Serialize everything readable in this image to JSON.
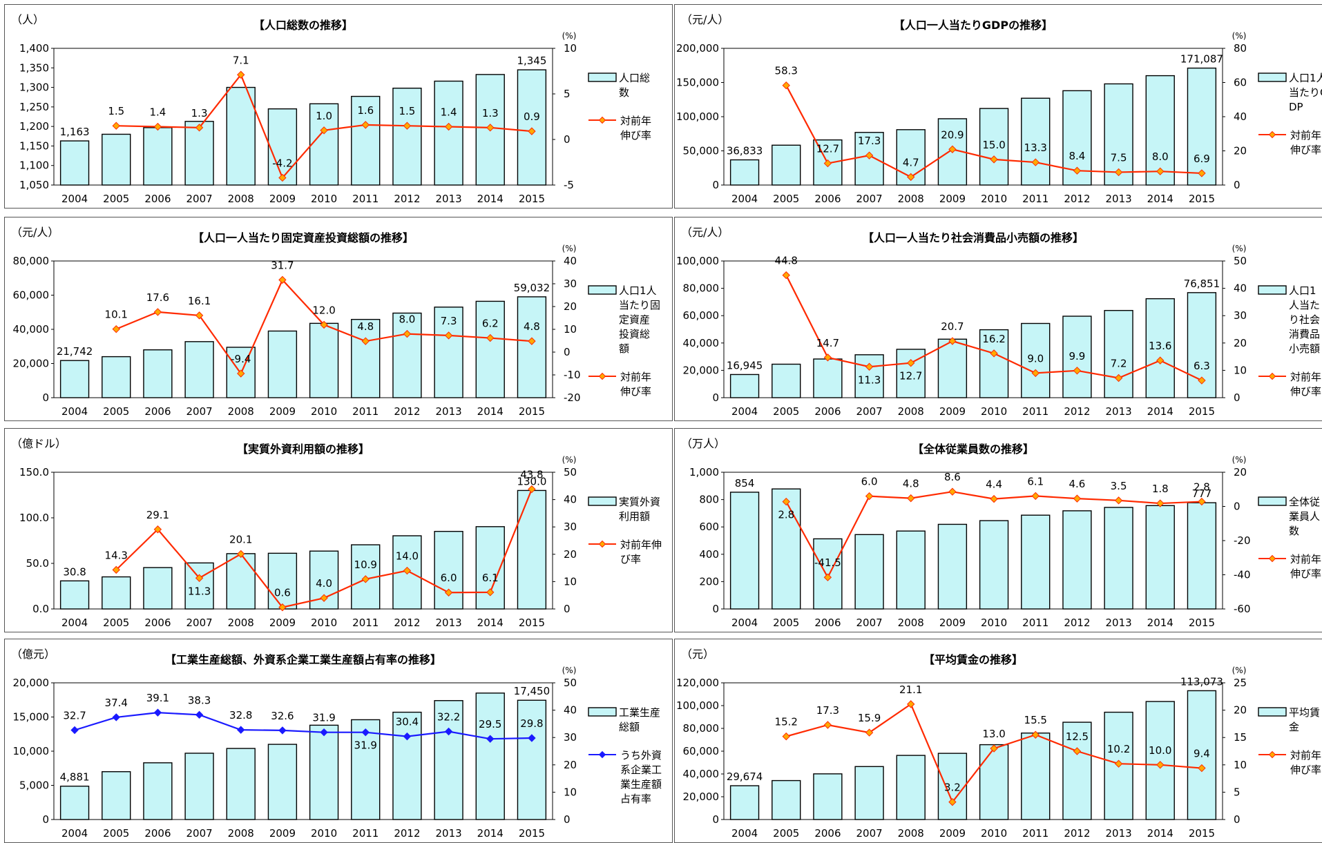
{
  "chart_data": [
    {
      "type": "bar",
      "title": "【人口総数の推移】",
      "y_unit": "（人）",
      "y2_unit": "(%)",
      "categories": [
        "2004",
        "2005",
        "2006",
        "2007",
        "2008",
        "2009",
        "2010",
        "2011",
        "2012",
        "2013",
        "2014",
        "2015"
      ],
      "ylim": [
        1050,
        1400
      ],
      "yticks": [
        "1,050",
        "1,100",
        "1,150",
        "1,200",
        "1,250",
        "1,300",
        "1,350",
        "1,400"
      ],
      "y2lim": [
        -5,
        10
      ],
      "y2ticks": [
        "-5",
        "0",
        "5",
        "10"
      ],
      "series": [
        {
          "name": "人口総数",
          "kind": "bar",
          "values": [
            1163,
            1180,
            1197,
            1213,
            1300,
            1245,
            1258,
            1277,
            1298,
            1316,
            1333,
            1345
          ],
          "labels": [
            "1,163",
            "",
            "",
            "",
            "",
            "",
            "",
            "",
            "",
            "",
            "",
            "1,345"
          ]
        },
        {
          "name": "対前年伸び率",
          "kind": "line",
          "axis": "right",
          "color": "#ff2a00",
          "marker": "#ffaa00",
          "values": [
            null,
            1.5,
            1.4,
            1.3,
            7.1,
            -4.2,
            1.0,
            1.6,
            1.5,
            1.4,
            1.3,
            0.9
          ],
          "labels": [
            "",
            "1.5",
            "1.4",
            "1.3",
            "7.1",
            "-4.2",
            "1.0",
            "1.6",
            "1.5",
            "1.4",
            "1.3",
            "0.9"
          ]
        }
      ],
      "legend_lines": [
        [
          "人口総",
          "数"
        ],
        [
          "対前年",
          "伸び率"
        ]
      ]
    },
    {
      "type": "bar",
      "title": "【人口一人当たりGDPの推移】",
      "y_unit": "（元/人）",
      "y2_unit": "(%)",
      "categories": [
        "2004",
        "2005",
        "2006",
        "2007",
        "2008",
        "2009",
        "2010",
        "2011",
        "2012",
        "2013",
        "2014",
        "2015"
      ],
      "ylim": [
        0,
        200000
      ],
      "yticks": [
        "0",
        "50,000",
        "100,000",
        "150,000",
        "200,000"
      ],
      "y2lim": [
        0,
        80
      ],
      "y2ticks": [
        "0",
        "20",
        "40",
        "60",
        "80"
      ],
      "series": [
        {
          "name": "人口1人当たりGDP",
          "kind": "bar",
          "values": [
            36833,
            58300,
            66000,
            77000,
            81000,
            97000,
            112000,
            127000,
            138000,
            148000,
            160000,
            171087
          ],
          "labels": [
            "36,833",
            "",
            "",
            "",
            "",
            "",
            "",
            "",
            "",
            "",
            "",
            "171,087"
          ]
        },
        {
          "name": "対前年伸び率",
          "kind": "line",
          "axis": "right",
          "color": "#ff2a00",
          "marker": "#ffaa00",
          "values": [
            null,
            58.3,
            12.7,
            17.3,
            4.7,
            20.9,
            15.0,
            13.3,
            8.4,
            7.5,
            8.0,
            6.9
          ],
          "labels": [
            "",
            "58.3",
            "12.7",
            "17.3",
            "4.7",
            "20.9",
            "15.0",
            "13.3",
            "8.4",
            "7.5",
            "8.0",
            "6.9"
          ]
        }
      ],
      "legend_lines": [
        [
          "人口1人",
          "当たりG",
          "DP"
        ],
        [
          "対前年",
          "伸び率"
        ]
      ]
    },
    {
      "type": "bar",
      "title": "【人口一人当たり固定資産投資総額の推移】",
      "y_unit": "（元/人）",
      "y2_unit": "(%)",
      "categories": [
        "2004",
        "2005",
        "2006",
        "2007",
        "2008",
        "2009",
        "2010",
        "2011",
        "2012",
        "2013",
        "2014",
        "2015"
      ],
      "ylim": [
        0,
        80000
      ],
      "yticks": [
        "0",
        "20,000",
        "40,000",
        "60,000",
        "80,000"
      ],
      "y2lim": [
        -20,
        40
      ],
      "y2ticks": [
        "-20",
        "-10",
        "0",
        "10",
        "20",
        "30",
        "40"
      ],
      "series": [
        {
          "name": "人口1人当たり固定資産投資総額",
          "kind": "bar",
          "values": [
            21742,
            24000,
            28000,
            32800,
            29500,
            39000,
            43500,
            45800,
            49500,
            53000,
            56400,
            59032
          ],
          "labels": [
            "21,742",
            "",
            "",
            "",
            "",
            "",
            "",
            "",
            "",
            "",
            "",
            "59,032"
          ]
        },
        {
          "name": "対前年伸び率",
          "kind": "line",
          "axis": "right",
          "color": "#ff2a00",
          "marker": "#ffaa00",
          "values": [
            null,
            10.1,
            17.6,
            16.1,
            -9.4,
            31.7,
            12.0,
            4.8,
            8.0,
            7.3,
            6.2,
            4.8
          ],
          "labels": [
            "",
            "10.1",
            "17.6",
            "16.1",
            "-9.4",
            "31.7",
            "12.0",
            "4.8",
            "8.0",
            "7.3",
            "6.2",
            "4.8"
          ]
        }
      ],
      "legend_lines": [
        [
          "人口1人",
          "当たり固",
          "定資産",
          "投資総",
          "額"
        ],
        [
          "対前年",
          "伸び率"
        ]
      ]
    },
    {
      "type": "bar",
      "title": "【人口一人当たり社会消費品小売額の推移】",
      "y_unit": "（元/人）",
      "y2_unit": "(%)",
      "categories": [
        "2004",
        "2005",
        "2006",
        "2007",
        "2008",
        "2009",
        "2010",
        "2011",
        "2012",
        "2013",
        "2014",
        "2015"
      ],
      "ylim": [
        0,
        100000
      ],
      "yticks": [
        "0",
        "20,000",
        "40,000",
        "60,000",
        "80,000",
        "100,000"
      ],
      "y2lim": [
        0,
        50
      ],
      "y2ticks": [
        "0",
        "10",
        "20",
        "30",
        "40",
        "50"
      ],
      "series": [
        {
          "name": "人口1人当たり社会消費品小売額",
          "kind": "bar",
          "values": [
            16945,
            24500,
            28300,
            31400,
            35400,
            42800,
            49700,
            54300,
            59600,
            63800,
            72400,
            76851
          ],
          "labels": [
            "16,945",
            "",
            "",
            "",
            "",
            "",
            "",
            "",
            "",
            "",
            "",
            "76,851"
          ]
        },
        {
          "name": "対前年伸び率",
          "kind": "line",
          "axis": "right",
          "color": "#ff2a00",
          "marker": "#ffaa00",
          "values": [
            null,
            44.8,
            14.7,
            11.3,
            12.7,
            20.7,
            16.2,
            9.0,
            9.9,
            7.2,
            13.6,
            6.3
          ],
          "labels": [
            "",
            "44.8",
            "14.7",
            "11.3",
            "12.7",
            "20.7",
            "16.2",
            "9.0",
            "9.9",
            "7.2",
            "13.6",
            "6.3"
          ]
        }
      ],
      "legend_lines": [
        [
          "人口1",
          "人当た",
          "り社会",
          "消費品",
          "小売額"
        ],
        [
          "対前年",
          "伸び率"
        ]
      ]
    },
    {
      "type": "bar",
      "title": "【実質外資利用額の推移】",
      "y_unit": "（億ドル）",
      "y2_unit": "(%)",
      "categories": [
        "2004",
        "2005",
        "2006",
        "2007",
        "2008",
        "2009",
        "2010",
        "2011",
        "2012",
        "2013",
        "2014",
        "2015"
      ],
      "ylim": [
        0,
        150
      ],
      "yticks": [
        "0.0",
        "50.0",
        "100.0",
        "150.0"
      ],
      "y2lim": [
        0,
        50
      ],
      "y2ticks": [
        "0",
        "10",
        "20",
        "30",
        "40",
        "50"
      ],
      "series": [
        {
          "name": "実質外資利用額",
          "kind": "bar",
          "values": [
            30.8,
            35.2,
            45.4,
            50.5,
            60.7,
            61.1,
            63.5,
            70.4,
            80.3,
            85.1,
            90.3,
            130.0
          ],
          "labels": [
            "30.8",
            "",
            "",
            "",
            "",
            "",
            "",
            "",
            "",
            "",
            "",
            "130.0"
          ]
        },
        {
          "name": "対前年伸び率",
          "kind": "line",
          "axis": "right",
          "color": "#ff2a00",
          "marker": "#ffaa00",
          "values": [
            null,
            14.3,
            29.1,
            11.3,
            20.1,
            0.6,
            4.0,
            10.9,
            14.0,
            6.0,
            6.1,
            43.8
          ],
          "labels": [
            "",
            "14.3",
            "29.1",
            "11.3",
            "20.1",
            "0.6",
            "4.0",
            "10.9",
            "14.0",
            "6.0",
            "6.1",
            "43.8"
          ]
        }
      ],
      "legend_lines": [
        [
          "実質外資",
          "利用額"
        ],
        [
          "対前年伸",
          "び率"
        ]
      ]
    },
    {
      "type": "bar",
      "title": "【全体従業員数の推移】",
      "y_unit": "（万人）",
      "y2_unit": "(%)",
      "categories": [
        "2004",
        "2005",
        "2006",
        "2007",
        "2008",
        "2009",
        "2010",
        "2011",
        "2012",
        "2013",
        "2014",
        "2015"
      ],
      "ylim": [
        0,
        1000
      ],
      "yticks": [
        "0",
        "200",
        "400",
        "600",
        "800",
        "1,000"
      ],
      "y2lim": [
        -60,
        20
      ],
      "y2ticks": [
        "-60",
        "-40",
        "-20",
        "0",
        "20"
      ],
      "series": [
        {
          "name": "全体従業員人数",
          "kind": "bar",
          "values": [
            854,
            878,
            513,
            544,
            570,
            619,
            646,
            686,
            718,
            743,
            756,
            777
          ],
          "labels": [
            "854",
            "",
            "",
            "",
            "",
            "",
            "",
            "",
            "",
            "",
            "",
            "777"
          ]
        },
        {
          "name": "対前年伸び率",
          "kind": "line",
          "axis": "right",
          "color": "#ff2a00",
          "marker": "#ffaa00",
          "values": [
            null,
            2.8,
            -41.5,
            6.0,
            4.8,
            8.6,
            4.4,
            6.1,
            4.6,
            3.5,
            1.8,
            2.8
          ],
          "labels": [
            "",
            "2.8",
            "-41.5",
            "6.0",
            "4.8",
            "8.6",
            "4.4",
            "6.1",
            "4.6",
            "3.5",
            "1.8",
            "2.8"
          ]
        }
      ],
      "legend_lines": [
        [
          "全体従",
          "業員人",
          "数"
        ],
        [
          "対前年",
          "伸び率"
        ]
      ]
    },
    {
      "type": "bar",
      "title": "【工業生産総額、外資系企業工業生産額占有率の推移】",
      "y_unit": "（億元）",
      "y2_unit": "(%)",
      "categories": [
        "2004",
        "2005",
        "2006",
        "2007",
        "2008",
        "2009",
        "2010",
        "2011",
        "2012",
        "2013",
        "2014",
        "2015"
      ],
      "ylim": [
        0,
        20000
      ],
      "yticks": [
        "0",
        "5,000",
        "10,000",
        "15,000",
        "20,000"
      ],
      "y2lim": [
        0,
        50
      ],
      "y2ticks": [
        "0",
        "10",
        "20",
        "30",
        "40",
        "50"
      ],
      "series": [
        {
          "name": "工業生産総額",
          "kind": "bar",
          "values": [
            4881,
            7000,
            8300,
            9700,
            10400,
            11000,
            13800,
            14600,
            15700,
            17400,
            18500,
            17450
          ],
          "labels": [
            "4,881",
            "",
            "",
            "",
            "",
            "",
            "",
            "",
            "",
            "",
            "",
            "17,450"
          ]
        },
        {
          "name": "うち外資系企業工業生産額占有率",
          "kind": "line",
          "axis": "right",
          "color": "#1a1aff",
          "marker": "#1a1aff",
          "values": [
            32.7,
            37.4,
            39.1,
            38.3,
            32.8,
            32.6,
            31.9,
            31.9,
            30.4,
            32.2,
            29.5,
            29.8
          ],
          "labels": [
            "32.7",
            "37.4",
            "39.1",
            "38.3",
            "32.8",
            "32.6",
            "31.9",
            "31.9",
            "30.4",
            "32.2",
            "29.5",
            "29.8"
          ]
        }
      ],
      "legend_lines": [
        [
          "工業生産",
          "総額"
        ],
        [
          "うち外資",
          "系企業工",
          "業生産額",
          "占有率"
        ]
      ]
    },
    {
      "type": "bar",
      "title": "【平均賃金の推移】",
      "y_unit": "（元）",
      "y2_unit": "(%)",
      "categories": [
        "2004",
        "2005",
        "2006",
        "2007",
        "2008",
        "2009",
        "2010",
        "2011",
        "2012",
        "2013",
        "2014",
        "2015"
      ],
      "ylim": [
        0,
        120000
      ],
      "yticks": [
        "0",
        "20,000",
        "40,000",
        "60,000",
        "80,000",
        "100,000",
        "120,000"
      ],
      "y2lim": [
        0,
        25
      ],
      "y2ticks": [
        "0",
        "5",
        "10",
        "15",
        "20",
        "25"
      ],
      "series": [
        {
          "name": "平均賃金",
          "kind": "bar",
          "values": [
            29674,
            34200,
            40100,
            46500,
            56300,
            58100,
            65700,
            75900,
            85400,
            94200,
            103600,
            113073
          ],
          "labels": [
            "29,674",
            "",
            "",
            "",
            "",
            "",
            "",
            "",
            "",
            "",
            "",
            "113,073"
          ]
        },
        {
          "name": "対前年伸び率",
          "kind": "line",
          "axis": "right",
          "color": "#ff2a00",
          "marker": "#ffaa00",
          "values": [
            null,
            15.2,
            17.3,
            15.9,
            21.1,
            3.2,
            13.0,
            15.5,
            12.5,
            10.2,
            10.0,
            9.4
          ],
          "labels": [
            "",
            "15.2",
            "17.3",
            "15.9",
            "21.1",
            "3.2",
            "13.0",
            "15.5",
            "12.5",
            "10.2",
            "10.0",
            "9.4"
          ]
        }
      ],
      "legend_lines": [
        [
          "平均賃",
          "金"
        ],
        [
          "対前年",
          "伸び率"
        ]
      ]
    }
  ]
}
